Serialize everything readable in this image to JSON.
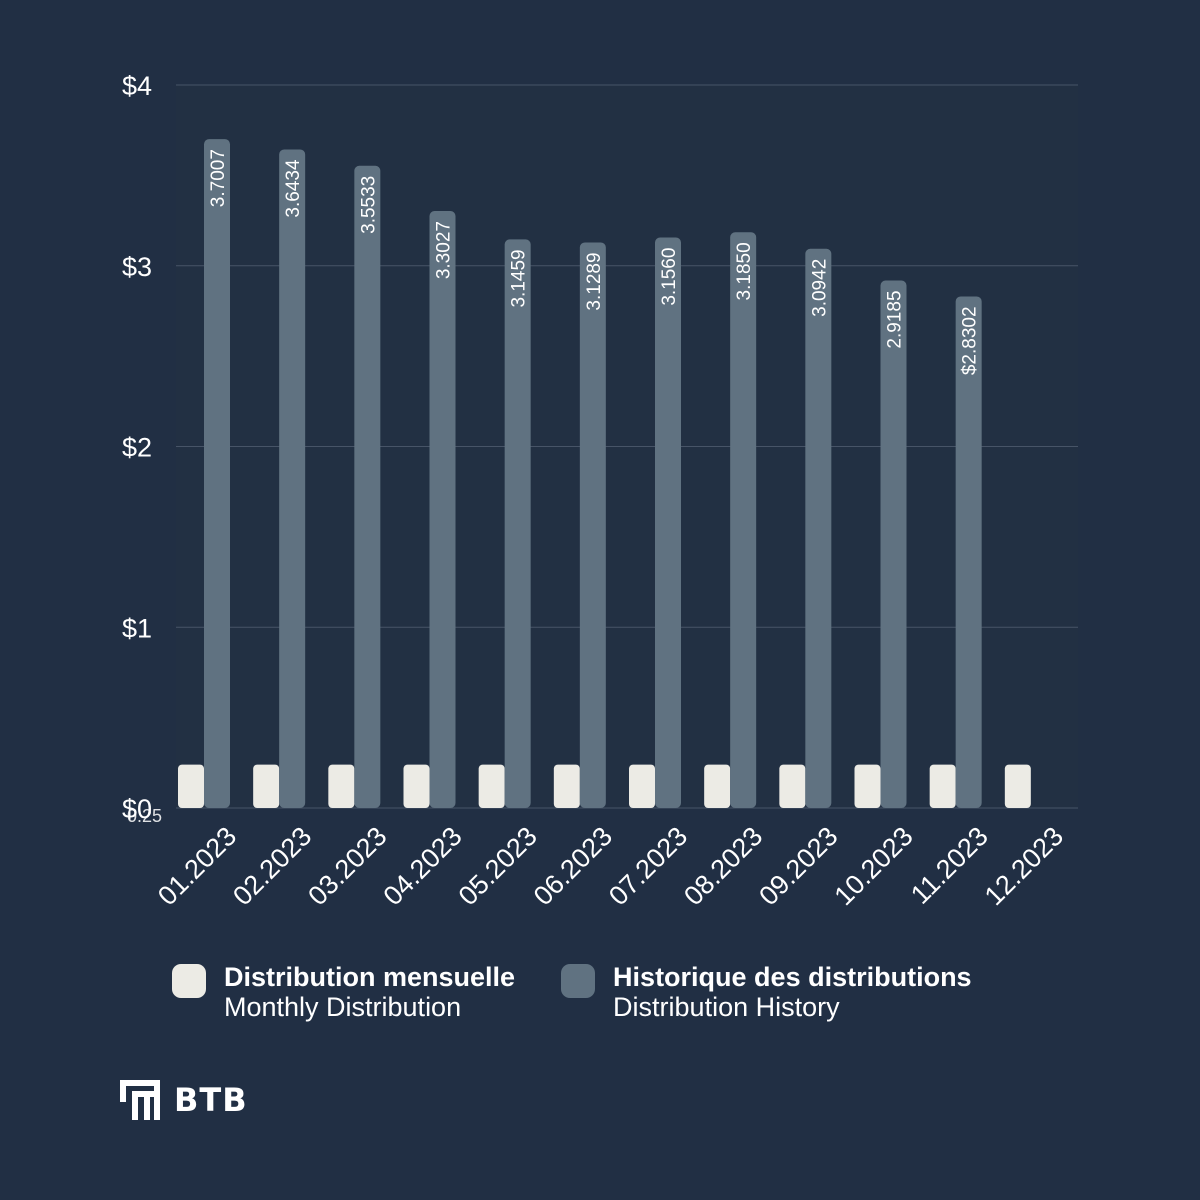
{
  "colors": {
    "background": "#212f44",
    "grid": "#475467",
    "monthly": "#ecebe5",
    "history": "#607281"
  },
  "chart_data": {
    "type": "bar",
    "categories": [
      "01.2023",
      "02.2023",
      "03.2023",
      "04.2023",
      "05.2023",
      "06.2023",
      "07.2023",
      "08.2023",
      "09.2023",
      "10.2023",
      "11.2023",
      "12.2023"
    ],
    "series": [
      {
        "name": "Distribution mensuelle / Monthly Distribution",
        "color": "#ecebe5",
        "values": [
          0.24,
          0.24,
          0.24,
          0.24,
          0.24,
          0.24,
          0.24,
          0.24,
          0.24,
          0.24,
          0.24,
          0.24
        ]
      },
      {
        "name": "Historique des distributions / Distribution History",
        "color": "#607281",
        "values": [
          3.7007,
          3.6434,
          3.5533,
          3.3027,
          3.1459,
          3.1289,
          3.156,
          3.185,
          3.0942,
          2.9185,
          2.8302,
          null
        ],
        "labels": [
          "3.7007",
          "3.6434",
          "3.5533",
          "3.3027",
          "3.1459",
          "3.1289",
          "3.1560",
          "3.1850",
          "3.0942",
          "2.9185",
          "$2.8302",
          ""
        ]
      }
    ],
    "yticks": [
      0,
      1,
      2,
      3,
      4
    ],
    "ytick_labels": [
      "$0",
      "$1",
      "$2",
      "$3",
      "$4"
    ],
    "ylim": [
      0,
      4
    ],
    "grid": true,
    "legend_position": "bottom",
    "overlap_label": "0.25"
  },
  "legend": [
    {
      "primary": "Distribution mensuelle",
      "secondary": "Monthly Distribution",
      "icon": "monthly-swatch"
    },
    {
      "primary": "Historique des distributions",
      "secondary": "Distribution History",
      "icon": "history-swatch"
    }
  ],
  "brand": {
    "name": "BTB",
    "icon": "btb-logo-icon"
  }
}
